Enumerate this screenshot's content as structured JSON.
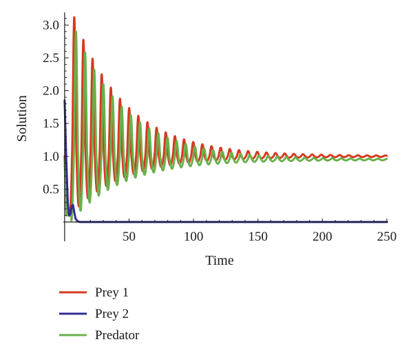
{
  "chart_data": {
    "type": "line",
    "title": "",
    "xlabel": "Time",
    "ylabel": "Solution",
    "xlim": [
      -1,
      250
    ],
    "ylim": [
      0,
      3.15
    ],
    "x_ticks": [
      50,
      100,
      150,
      200,
      250
    ],
    "y_ticks": [
      0.5,
      1.0,
      1.5,
      2.0,
      2.5,
      3.0
    ],
    "x_tick_labels": [
      "50",
      "100",
      "150",
      "200",
      "250"
    ],
    "y_tick_labels": [
      "0.5",
      "1.0",
      "1.5",
      "2.0",
      "2.5",
      "3.0"
    ],
    "grid": false,
    "legend": {
      "position": "bottom-left"
    },
    "series": [
      {
        "name": "Prey 1",
        "color": "#d6391f",
        "model": "damped-oscillation",
        "x_range": [
          0,
          250
        ],
        "equilibrium": 1.0,
        "peak_first": 3.12,
        "trough_first": 0.17,
        "first_peak_time": 7.5,
        "period": 7.1,
        "decay_time": 40
      },
      {
        "name": "Prey 2",
        "color": "#2e2d8f",
        "model": "early-collapse",
        "x_range": [
          0,
          250
        ],
        "points": [
          [
            0,
            1.85
          ],
          [
            1.2,
            1.0
          ],
          [
            2.5,
            0.28
          ],
          [
            3.5,
            0.1
          ],
          [
            4.5,
            0.12
          ],
          [
            5.5,
            0.24
          ],
          [
            6.5,
            0.26
          ],
          [
            7.5,
            0.15
          ],
          [
            8.5,
            0.05
          ],
          [
            10,
            0.01
          ],
          [
            12,
            0.0
          ],
          [
            250,
            0.0
          ]
        ]
      },
      {
        "name": "Predator",
        "color": "#6ab04c",
        "model": "damped-oscillation",
        "x_range": [
          0,
          250
        ],
        "equilibrium": 0.95,
        "peak_first": 2.9,
        "trough_first": 0.1,
        "first_peak_time": 8.8,
        "period": 7.1,
        "decay_time": 40
      }
    ]
  }
}
